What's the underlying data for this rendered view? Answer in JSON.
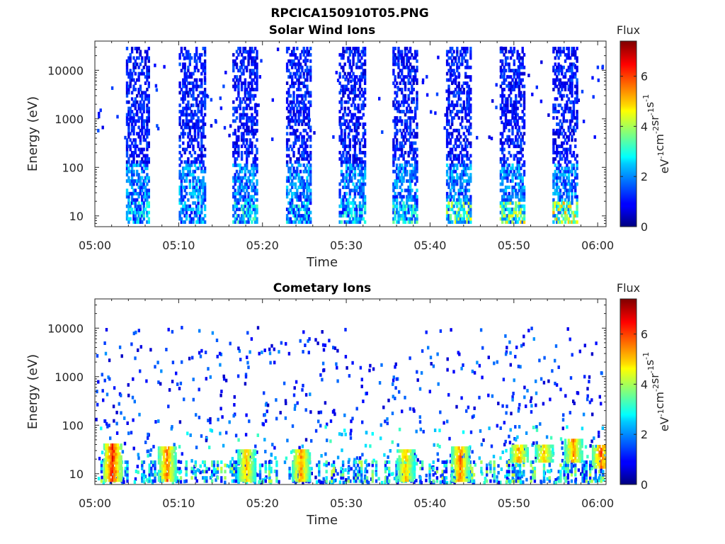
{
  "figure": {
    "title": "RPCICA150910T05.PNG"
  },
  "chart_data": [
    {
      "type": "heatmap",
      "title": "Solar Wind Ions",
      "xlabel": "Time",
      "ylabel": "Energy (eV)",
      "x_ticks": [
        "05:00",
        "05:10",
        "05:20",
        "05:30",
        "05:40",
        "05:50",
        "06:00"
      ],
      "x_range": [
        "05:00",
        "06:01"
      ],
      "y_scale": "log",
      "y_ticks": [
        10,
        100,
        1000,
        10000
      ],
      "y_tick_labels": [
        "10",
        "100",
        "1000",
        "10000"
      ],
      "y_range": [
        6,
        40000
      ],
      "colorbar": {
        "title": "Flux",
        "label": "eV-1cm-2sr-1s-1",
        "ticks": [
          0,
          2,
          4,
          6
        ],
        "range": [
          0,
          7.4
        ],
        "colormap": "jet"
      },
      "bursts": [
        {
          "start": "05:03.7",
          "end": "05:06.5",
          "low_energy_flux": 3.0
        },
        {
          "start": "05:10.0",
          "end": "05:13.0",
          "low_energy_flux": 2.6
        },
        {
          "start": "05:16.4",
          "end": "05:19.3",
          "low_energy_flux": 3.2
        },
        {
          "start": "05:22.8",
          "end": "05:25.7",
          "low_energy_flux": 3.0
        },
        {
          "start": "05:29.1",
          "end": "05:32.1",
          "low_energy_flux": 3.1
        },
        {
          "start": "05:35.5",
          "end": "05:38.5",
          "low_energy_flux": 3.3
        },
        {
          "start": "05:41.9",
          "end": "05:44.8",
          "low_energy_flux": 4.2
        },
        {
          "start": "05:48.3",
          "end": "05:51.2",
          "low_energy_flux": 4.5
        },
        {
          "start": "05:54.6",
          "end": "05:57.6",
          "low_energy_flux": 5.0
        }
      ]
    },
    {
      "type": "heatmap",
      "title": "Cometary Ions",
      "xlabel": "Time",
      "ylabel": "Energy (eV)",
      "x_ticks": [
        "05:00",
        "05:10",
        "05:20",
        "05:30",
        "05:40",
        "05:50",
        "06:00"
      ],
      "x_range": [
        "05:00",
        "06:01"
      ],
      "y_scale": "log",
      "y_ticks": [
        10,
        100,
        1000,
        10000
      ],
      "y_tick_labels": [
        "10",
        "100",
        "1000",
        "10000"
      ],
      "y_range": [
        6,
        40000
      ],
      "colorbar": {
        "title": "Flux",
        "label": "eV-1cm-2sr-1s-1",
        "ticks": [
          0,
          2,
          4,
          6
        ],
        "range": [
          0,
          7.4
        ],
        "colormap": "jet"
      },
      "hotspots": [
        {
          "time": "05:02.0",
          "energy_low": 8,
          "energy_high": 45,
          "flux": 6.8
        },
        {
          "time": "05:08.5",
          "energy_low": 8,
          "energy_high": 40,
          "flux": 6.0
        },
        {
          "time": "05:18.0",
          "energy_low": 8,
          "energy_high": 35,
          "flux": 5.5
        },
        {
          "time": "05:24.5",
          "energy_low": 8,
          "energy_high": 35,
          "flux": 5.8
        },
        {
          "time": "05:37.0",
          "energy_low": 8,
          "energy_high": 35,
          "flux": 5.5
        },
        {
          "time": "05:43.5",
          "energy_low": 8,
          "energy_high": 40,
          "flux": 6.0
        },
        {
          "time": "05:50.5",
          "energy_low": 20,
          "energy_high": 45,
          "flux": 5.8
        },
        {
          "time": "05:53.5",
          "energy_low": 20,
          "energy_high": 40,
          "flux": 5.6
        },
        {
          "time": "05:57.0",
          "energy_low": 20,
          "energy_high": 60,
          "flux": 5.8
        },
        {
          "time": "06:00.3",
          "energy_low": 15,
          "energy_high": 45,
          "flux": 6.2
        }
      ]
    }
  ]
}
